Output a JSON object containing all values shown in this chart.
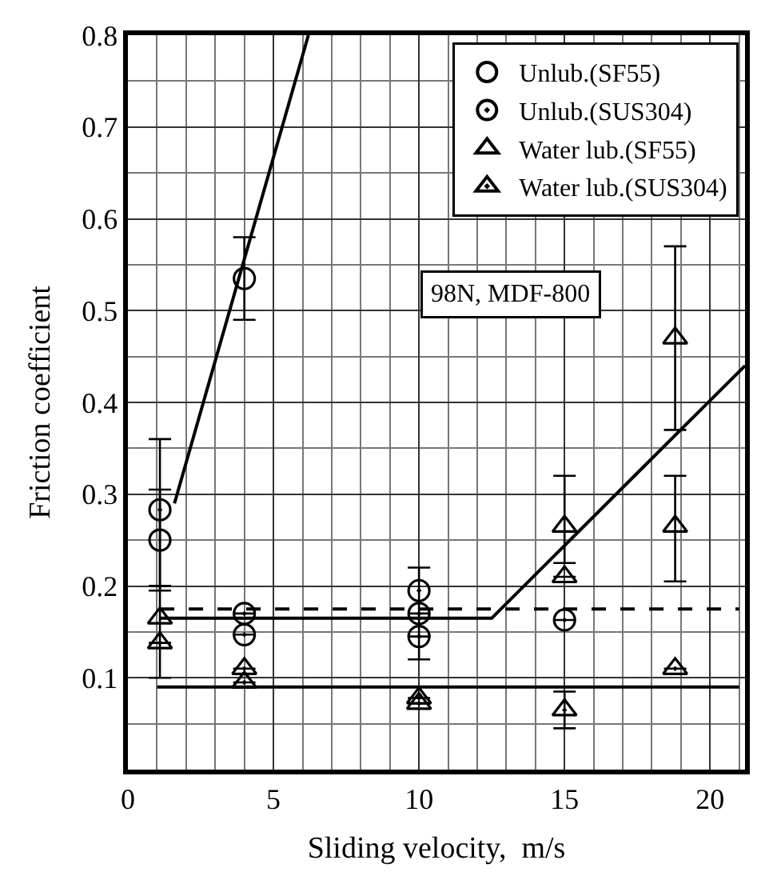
{
  "chart_data": {
    "type": "scatter",
    "xlabel": "Sliding velocity,  m/s",
    "ylabel": "Friction coefficient",
    "xlim": [
      0,
      21.2
    ],
    "xticks": [
      0,
      5,
      10,
      15,
      20
    ],
    "ylim": [
      0,
      0.8
    ],
    "yticks": [
      0.1,
      0.2,
      0.3,
      0.4,
      0.5,
      0.6,
      0.7,
      0.8
    ],
    "grid": true,
    "legend": "top right",
    "annotations": [
      "98N, MDF-800"
    ],
    "series": [
      {
        "name": "Unlub.(SF55)",
        "color": "#000000",
        "marker": "circle",
        "x": [
          1.1,
          4
        ],
        "values": [
          0.25,
          0.535
        ],
        "errors": [
          [
            0.195,
            0.305
          ],
          [
            0.49,
            0.58
          ]
        ]
      },
      {
        "name": "Unlub.(SUS304)",
        "color": "#000000",
        "marker": "circle",
        "x": [
          1.1,
          4,
          4,
          10,
          10,
          10,
          15
        ],
        "values": [
          0.283,
          0.17,
          0.147,
          0.195,
          0.17,
          0.145,
          0.163
        ],
        "errors": [
          [
            0.2,
            0.36
          ],
          null,
          null,
          [
            0.12,
            0.22
          ],
          null,
          null,
          null
        ]
      },
      {
        "name": "Water lub.(SF55)",
        "color": "#000000",
        "marker": "triangle",
        "x": [
          1.1,
          15,
          15,
          18.8,
          18.8
        ],
        "values": [
          0.165,
          0.265,
          0.21,
          0.47,
          0.265
        ],
        "errors": [
          [
            0.1,
            0.2
          ],
          [
            0.225,
            0.32
          ],
          null,
          [
            0.37,
            0.57
          ],
          [
            0.205,
            0.32
          ]
        ]
      },
      {
        "name": "Water lub.(SUS304)",
        "color": "#000000",
        "marker": "triangle",
        "x": [
          1.1,
          4,
          4,
          10,
          10,
          15,
          18.8
        ],
        "values": [
          0.138,
          0.11,
          0.095,
          0.078,
          0.072,
          0.065,
          0.11
        ],
        "errors": [
          null,
          null,
          null,
          null,
          null,
          [
            0.045,
            0.085
          ],
          null
        ]
      },
      {
        "type": "line",
        "color": "#000000",
        "line_style": "solid",
        "x": [
          1.6,
          6.2
        ],
        "values": [
          0.29,
          0.8
        ]
      },
      {
        "type": "line",
        "color": "#000000",
        "line_style": "dashed",
        "x": [
          1.1,
          21
        ],
        "values": [
          0.175,
          0.175
        ]
      },
      {
        "type": "line",
        "color": "#000000",
        "line_style": "solid",
        "x": [
          1.1,
          12.5,
          21.2
        ],
        "values": [
          0.165,
          0.165,
          0.44
        ]
      },
      {
        "type": "line",
        "color": "#000000",
        "line_style": "solid",
        "x": [
          1.0,
          21
        ],
        "values": [
          0.09,
          0.09
        ]
      }
    ]
  }
}
